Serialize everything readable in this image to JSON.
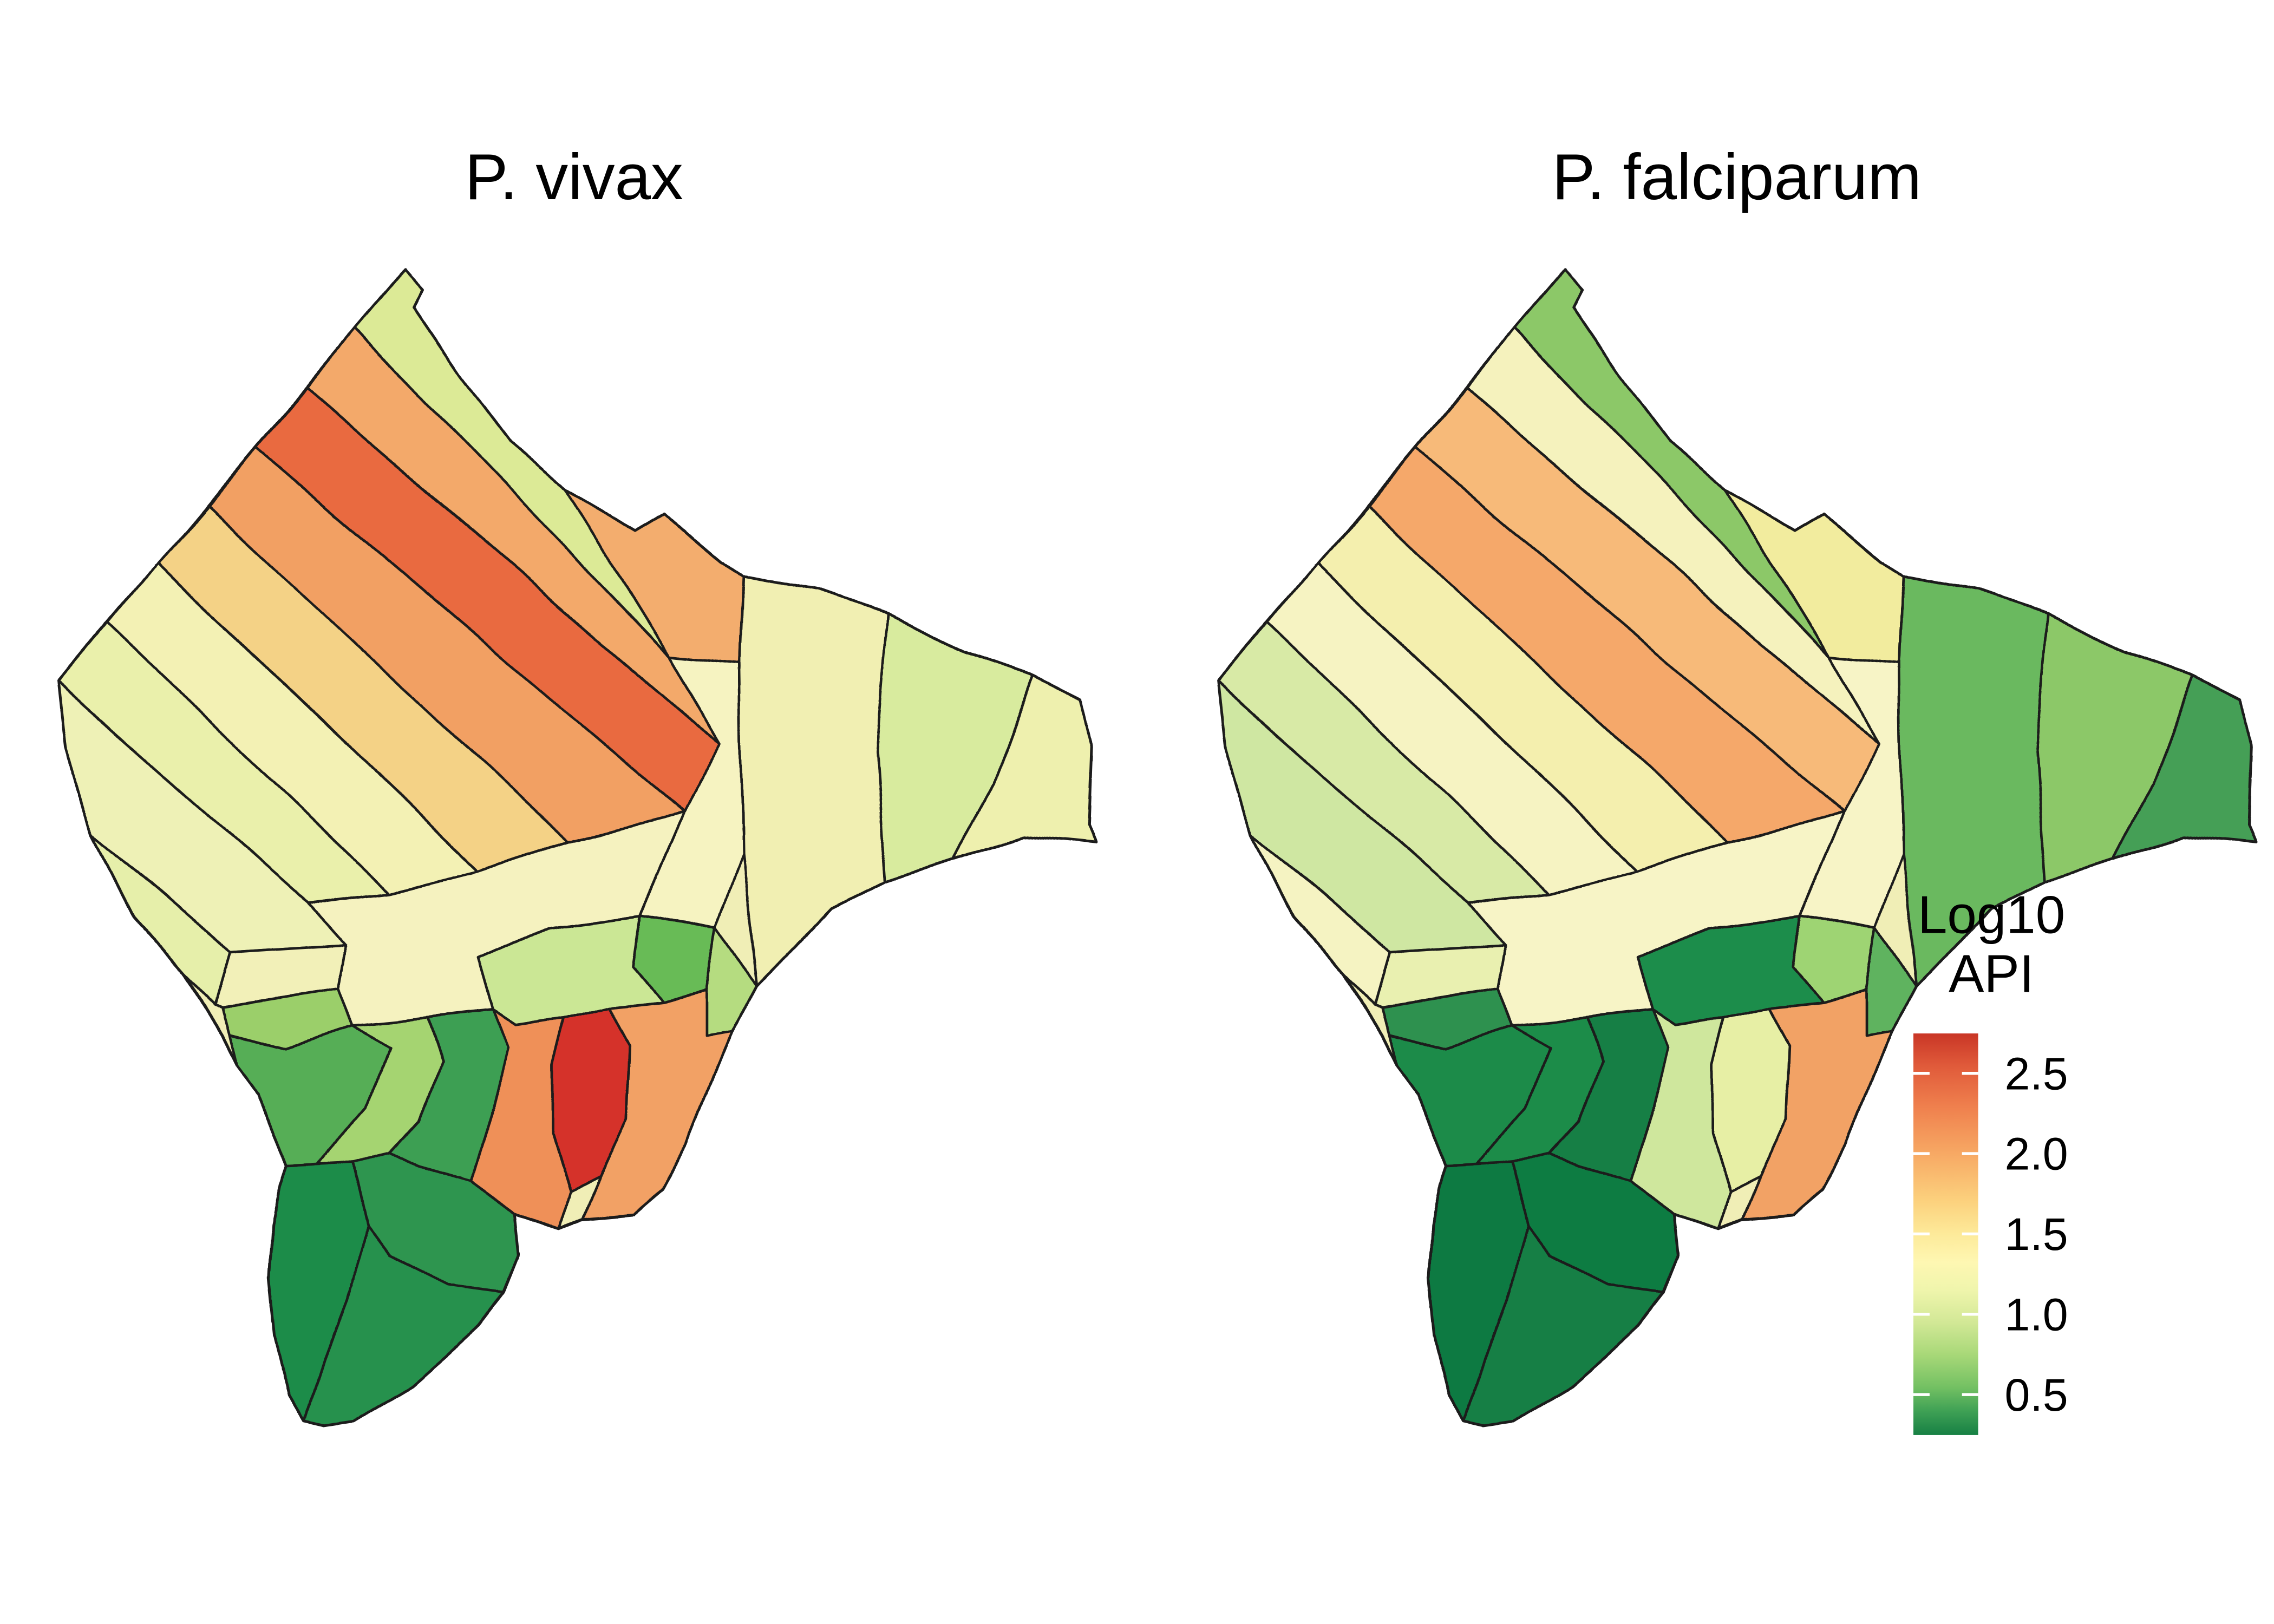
{
  "figure": {
    "type": "choropleth-map-pair",
    "background": "#ffffff",
    "border_color": "#1a1a1a",
    "base_fill": "#f0eeb6",
    "maps": [
      {
        "id": "vivax",
        "title": "P. vivax",
        "district_colors": [
          "#dcea96",
          "#f3a96a",
          "#e96a41",
          "#f2a064",
          "#f4d286",
          "#f3f1b4",
          "#eaf0ab",
          "#f3ad6e",
          "#f6f3c1",
          "#f1efb2",
          "#d8eb9e",
          "#eef0ae",
          "#eef1b6",
          "#e6efaa",
          "#f2f0b8",
          "#9bcf6b",
          "#56ae56",
          "#a5d471",
          "#3e9f52",
          "#f5f2bf",
          "#68bb57",
          "#b5dc80",
          "#cbe795",
          "#d5312a",
          "#f2a165",
          "#ef9058",
          "#1f8c49",
          "#2e9550",
          "#27914d"
        ]
      },
      {
        "id": "falciparum",
        "title": "P. falciparum",
        "district_colors": [
          "#8cc868",
          "#f5f2bd",
          "#f7ba79",
          "#f5a86b",
          "#f4efae",
          "#f6f3c2",
          "#d8eaa6",
          "#f2ec9e",
          "#f7f4c6",
          "#6ab95f",
          "#8cc868",
          "#459f56",
          "#cfe7a2",
          "#f5f3c2",
          "#e9f0b0",
          "#2e9150",
          "#1c8b49",
          "#1e8c4a",
          "#157f45",
          "#f7f4c6",
          "#9ed473",
          "#5eb35e",
          "#1f8d4b",
          "#e7efa5",
          "#f2a265",
          "#cfe79d",
          "#117a42",
          "#0f7c43",
          "#157f45"
        ]
      }
    ],
    "legend": {
      "title_lines": [
        "Log10",
        "API"
      ],
      "ticks": [
        "2.5",
        "2.0",
        "1.5",
        "1.0",
        "0.5"
      ],
      "tick_mark_color": "#ffffff",
      "gradient_stops": [
        [
          0.0,
          "#c93626"
        ],
        [
          0.08,
          "#e05a3a"
        ],
        [
          0.18,
          "#ef7f4d"
        ],
        [
          0.3,
          "#f7a964"
        ],
        [
          0.42,
          "#fcd27e"
        ],
        [
          0.5,
          "#fdea9a"
        ],
        [
          0.57,
          "#fef7b2"
        ],
        [
          0.64,
          "#eff5ac"
        ],
        [
          0.72,
          "#d2e896"
        ],
        [
          0.8,
          "#a8d878"
        ],
        [
          0.88,
          "#74c163"
        ],
        [
          0.94,
          "#3fa155"
        ],
        [
          1.0,
          "#178044"
        ]
      ]
    }
  }
}
